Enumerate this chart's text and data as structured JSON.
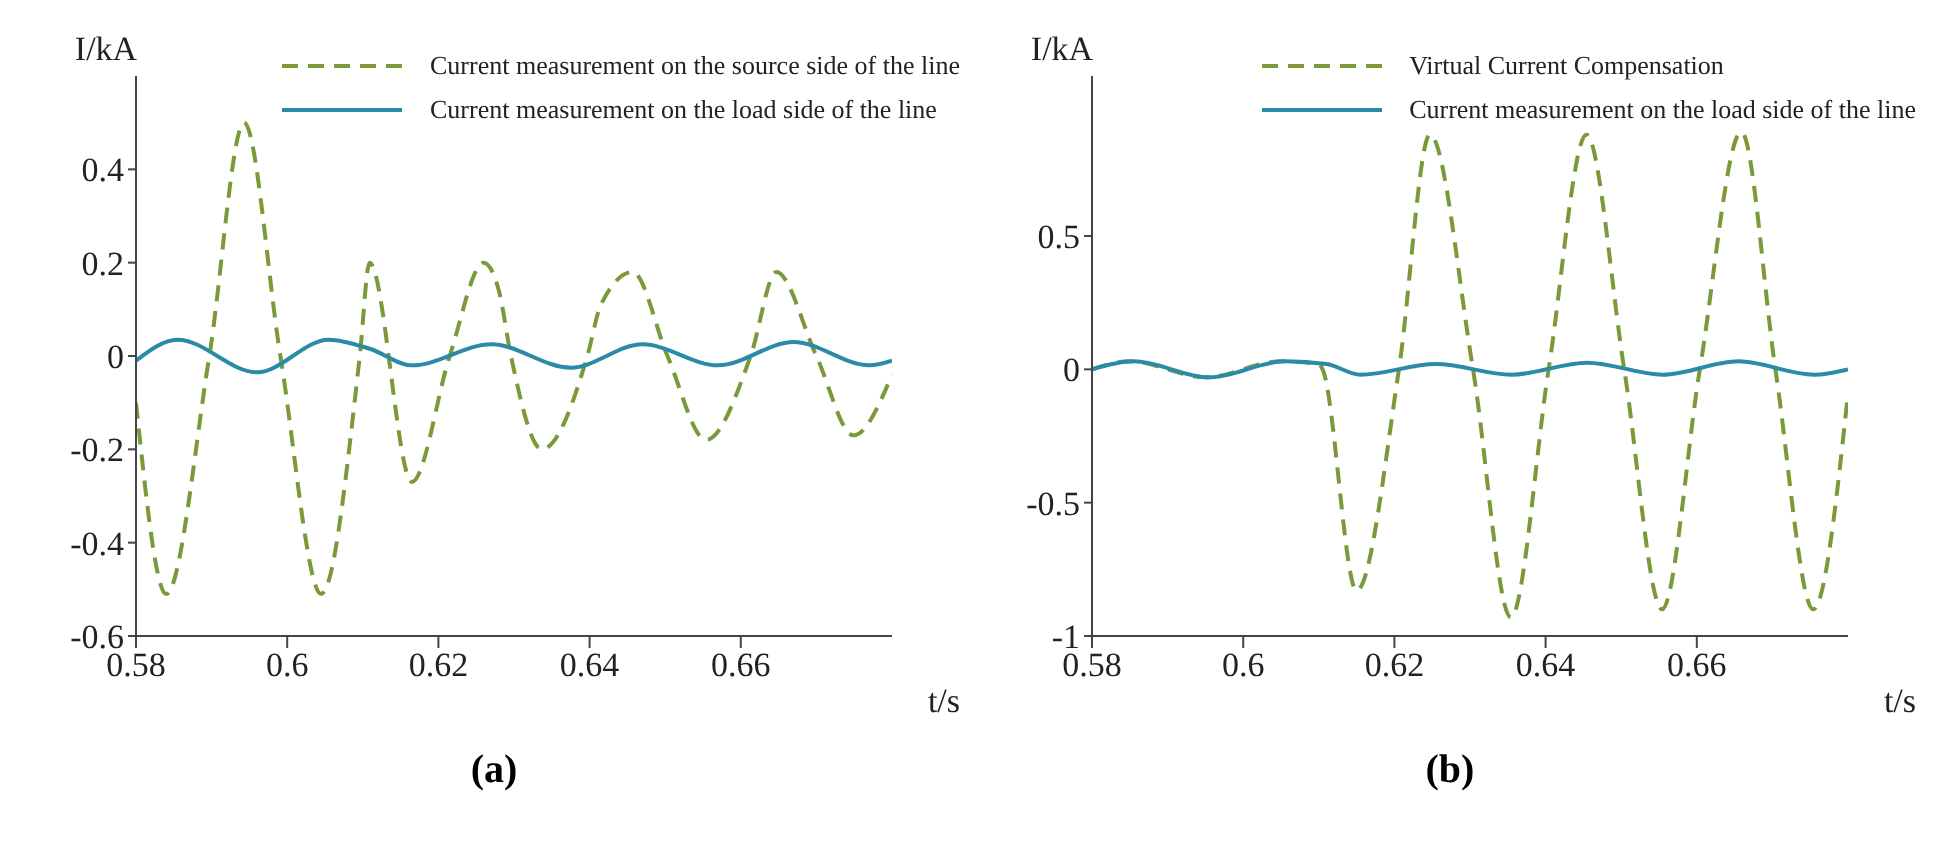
{
  "chart_data": [
    {
      "type": "line",
      "title": "(a)",
      "xlabel": "t/s",
      "ylabel": "I/kA",
      "xlim": [
        0.58,
        0.68
      ],
      "xticks": [
        0.58,
        0.6,
        0.62,
        0.64,
        0.66
      ],
      "ylim": [
        -0.6,
        0.6
      ],
      "yticks": [
        -0.6,
        -0.4,
        -0.2,
        0,
        0.2,
        0.4
      ],
      "grid": false,
      "legend": "top right",
      "marker": "none",
      "series": [
        {
          "name": "Current measurement on the source side of the line",
          "color": "#7a9a3a",
          "line_style": "dashed",
          "x": [
            0.58,
            0.584,
            0.5897,
            0.5943,
            0.5991,
            0.6045,
            0.6096,
            0.6109,
            0.6165,
            0.6215,
            0.626,
            0.628,
            0.6296,
            0.6337,
            0.6397,
            0.6415,
            0.6457,
            0.6503,
            0.6554,
            0.6613,
            0.6647,
            0.67,
            0.6749,
            0.68
          ],
          "values": [
            -0.1,
            -0.51,
            0,
            0.5,
            0,
            -0.51,
            0,
            0.2,
            -0.27,
            0,
            0.2,
            0.14,
            0,
            -0.2,
            0,
            0.11,
            0.18,
            0,
            -0.18,
            0,
            0.18,
            0,
            -0.17,
            -0.04
          ]
        },
        {
          "name": "Current measurement on the load side of the line",
          "color": "#2a8aa8",
          "line_style": "solid",
          "x": [
            0.58,
            0.5855,
            0.596,
            0.6055,
            0.611,
            0.6165,
            0.627,
            0.6375,
            0.647,
            0.657,
            0.667,
            0.677,
            0.68
          ],
          "values": [
            -0.01,
            0.035,
            -0.035,
            0.035,
            0.015,
            -0.02,
            0.025,
            -0.025,
            0.025,
            -0.02,
            0.03,
            -0.02,
            -0.01
          ]
        }
      ]
    },
    {
      "type": "line",
      "title": "(b)",
      "xlabel": "t/s",
      "ylabel": "I/kA",
      "xlim": [
        0.58,
        0.68
      ],
      "xticks": [
        0.58,
        0.6,
        0.62,
        0.64,
        0.66
      ],
      "ylim": [
        -1,
        1.1
      ],
      "yticks": [
        -1,
        -0.5,
        0,
        0.5
      ],
      "grid": false,
      "legend": "top right",
      "marker": "none",
      "series": [
        {
          "name": "Virtual Current Compensation",
          "color": "#7a9a3a",
          "line_style": "dashed",
          "x": [
            0.58,
            0.585,
            0.595,
            0.605,
            0.61,
            0.6105,
            0.615,
            0.6206,
            0.6247,
            0.6304,
            0.6354,
            0.6404,
            0.6454,
            0.6504,
            0.6554,
            0.6604,
            0.6659,
            0.6704,
            0.6754,
            0.68
          ],
          "values": [
            0,
            0.03,
            -0.03,
            0.03,
            0.02,
            0,
            -0.83,
            0,
            0.88,
            0,
            -0.93,
            0,
            0.88,
            0,
            -0.9,
            0,
            0.89,
            0,
            -0.9,
            -0.09
          ]
        },
        {
          "name": "Current measurement on the load side of the line",
          "color": "#2a8aa8",
          "line_style": "solid",
          "x": [
            0.58,
            0.5855,
            0.5955,
            0.6055,
            0.611,
            0.6155,
            0.6255,
            0.6355,
            0.6455,
            0.6555,
            0.6655,
            0.6755,
            0.68
          ],
          "values": [
            0,
            0.03,
            -0.03,
            0.03,
            0.02,
            -0.02,
            0.02,
            -0.02,
            0.025,
            -0.02,
            0.03,
            -0.02,
            0
          ]
        }
      ]
    }
  ]
}
